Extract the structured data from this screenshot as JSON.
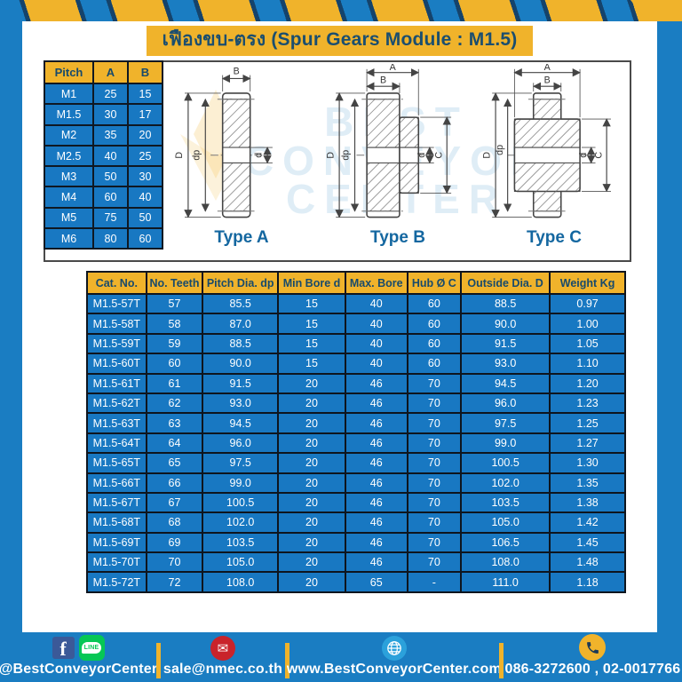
{
  "title": "เฟืองขบ-ตรง (Spur Gears Module : M1.5)",
  "colors": {
    "brand_blue": "#1A7DC2",
    "cell_blue": "#1878C2",
    "accent_yellow": "#F0B32B",
    "navy_text": "#1B4E6F",
    "email_red": "#C9232B",
    "line_green": "#06C755",
    "facebook_blue": "#3B5998"
  },
  "pitch_table": {
    "headers": [
      "Pitch",
      "A",
      "B"
    ],
    "rows": [
      [
        "M1",
        "25",
        "15"
      ],
      [
        "M1.5",
        "30",
        "17"
      ],
      [
        "M2",
        "35",
        "20"
      ],
      [
        "M2.5",
        "40",
        "25"
      ],
      [
        "M3",
        "50",
        "30"
      ],
      [
        "M4",
        "60",
        "40"
      ],
      [
        "M5",
        "75",
        "50"
      ],
      [
        "M6",
        "80",
        "60"
      ]
    ]
  },
  "drawings": {
    "watermark": [
      "BEST",
      "CONVEYOR",
      "CENTER"
    ],
    "type_a": {
      "label": "Type A",
      "dim_b": "B",
      "dim_d_outer": "D",
      "dim_dp": "dp",
      "dim_bore": "d"
    },
    "type_b": {
      "label": "Type B",
      "dim_a": "A",
      "dim_b": "B",
      "dim_d_outer": "D",
      "dim_dp": "dp",
      "dim_bore": "d",
      "dim_hub": "C"
    },
    "type_c": {
      "label": "Type C",
      "dim_a": "A",
      "dim_b": "B",
      "dim_d_outer": "D",
      "dim_dp": "dp",
      "dim_bore": "d",
      "dim_hub": "C"
    }
  },
  "spec_table": {
    "headers": [
      "Cat. No.",
      "No. Teeth",
      "Pitch Dia. dp",
      "Min Bore d",
      "Max. Bore",
      "Hub Ø C",
      "Outside Dia. D",
      "Weight Kg"
    ],
    "rows": [
      [
        "M1.5-57T",
        "57",
        "85.5",
        "15",
        "40",
        "60",
        "88.5",
        "0.97"
      ],
      [
        "M1.5-58T",
        "58",
        "87.0",
        "15",
        "40",
        "60",
        "90.0",
        "1.00"
      ],
      [
        "M1.5-59T",
        "59",
        "88.5",
        "15",
        "40",
        "60",
        "91.5",
        "1.05"
      ],
      [
        "M1.5-60T",
        "60",
        "90.0",
        "15",
        "40",
        "60",
        "93.0",
        "1.10"
      ],
      [
        "M1.5-61T",
        "61",
        "91.5",
        "20",
        "46",
        "70",
        "94.5",
        "1.20"
      ],
      [
        "M1.5-62T",
        "62",
        "93.0",
        "20",
        "46",
        "70",
        "96.0",
        "1.23"
      ],
      [
        "M1.5-63T",
        "63",
        "94.5",
        "20",
        "46",
        "70",
        "97.5",
        "1.25"
      ],
      [
        "M1.5-64T",
        "64",
        "96.0",
        "20",
        "46",
        "70",
        "99.0",
        "1.27"
      ],
      [
        "M1.5-65T",
        "65",
        "97.5",
        "20",
        "46",
        "70",
        "100.5",
        "1.30"
      ],
      [
        "M1.5-66T",
        "66",
        "99.0",
        "20",
        "46",
        "70",
        "102.0",
        "1.35"
      ],
      [
        "M1.5-67T",
        "67",
        "100.5",
        "20",
        "46",
        "70",
        "103.5",
        "1.38"
      ],
      [
        "M1.5-68T",
        "68",
        "102.0",
        "20",
        "46",
        "70",
        "105.0",
        "1.42"
      ],
      [
        "M1.5-69T",
        "69",
        "103.5",
        "20",
        "46",
        "70",
        "106.5",
        "1.45"
      ],
      [
        "M1.5-70T",
        "70",
        "105.0",
        "20",
        "46",
        "70",
        "108.0",
        "1.48"
      ],
      [
        "M1.5-72T",
        "72",
        "108.0",
        "20",
        "65",
        "-",
        "111.0",
        "1.18"
      ]
    ]
  },
  "footer": {
    "facebook_glyph": "f",
    "line_text": "LINE",
    "social_label": "@BestConveyorCenter",
    "email": "sale@nmec.co.th",
    "website": "www.BestConveyorCenter.com",
    "phone": "086-3272600 , 02-0017766"
  }
}
